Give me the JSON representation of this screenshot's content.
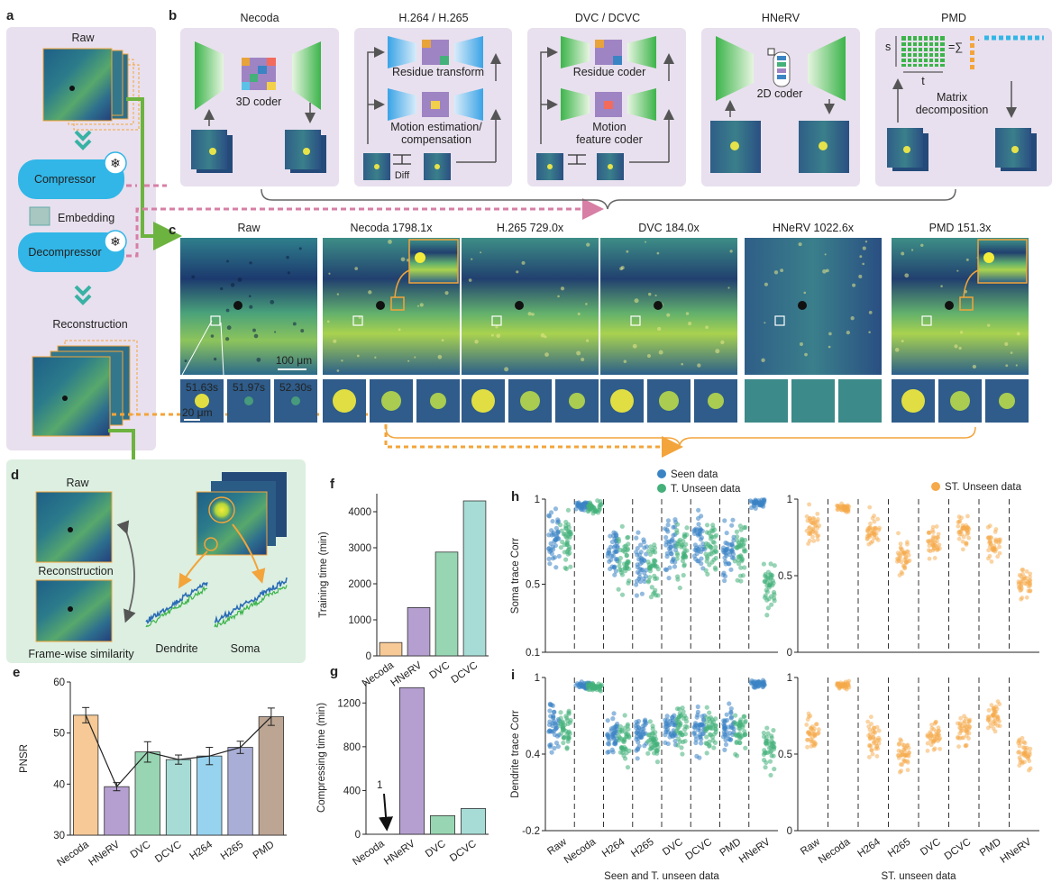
{
  "panels": {
    "a": {
      "letter": "a",
      "raw": "Raw",
      "compressor": "Compressor",
      "embedding": "Embedding",
      "decompressor": "Decompressor",
      "reconstruction": "Reconstruction"
    },
    "b": {
      "letter": "b",
      "methods": [
        {
          "title": "Necoda",
          "label": "3D coder"
        },
        {
          "title": "H.264 / H.265",
          "label1": "Residue transform",
          "label2": "Motion estimation/",
          "label3": "compensation",
          "label4": "Diff"
        },
        {
          "title": "DVC / DCVC",
          "label1": "Residue coder",
          "label2": "Motion",
          "label3": "feature coder"
        },
        {
          "title": "HNeRV",
          "label": "2D coder"
        },
        {
          "title": "PMD",
          "label1": "Matrix",
          "label2": "decomposition",
          "s": "s",
          "t": "t",
          "eq": "=∑"
        }
      ]
    },
    "c": {
      "letter": "c",
      "columns": [
        "Raw",
        "Necoda 1798.1x",
        "H.265 729.0x",
        "DVC 184.0x",
        "HNeRV 1022.6x",
        "PMD 151.3x"
      ],
      "timestamps": [
        "51.63s",
        "51.97s",
        "52.30s"
      ],
      "scalebar_main": "100 μm",
      "scalebar_crop": "20 μm"
    },
    "d": {
      "letter": "d",
      "raw": "Raw",
      "reconstruction": "Reconstruction",
      "similarity": "Frame-wise similarity",
      "dendrite": "Dendrite",
      "soma": "Soma"
    }
  },
  "chart_data": [
    {
      "panel": "e",
      "type": "bar",
      "ylabel": "PNSR",
      "categories": [
        "Necoda",
        "HNeRV",
        "DVC",
        "DCVC",
        "H264",
        "H265",
        "PMD"
      ],
      "values": [
        53.5,
        39.5,
        46.3,
        44.8,
        45.5,
        47.2,
        53.2
      ],
      "errors": [
        1.5,
        0.8,
        2.0,
        0.9,
        1.7,
        1.2,
        1.7
      ],
      "ylim": [
        30,
        60
      ],
      "yticks": [
        30,
        40,
        50,
        60
      ],
      "colors": [
        "#f6c996",
        "#b59fd0",
        "#98d6b3",
        "#a7dcd6",
        "#97d3ef",
        "#a9aed6",
        "#bca593"
      ]
    },
    {
      "panel": "f",
      "type": "bar",
      "ylabel": "Training time (min)",
      "categories": [
        "Necoda",
        "HNeRV",
        "DVC",
        "DCVC"
      ],
      "values": [
        370,
        1340,
        2880,
        4300
      ],
      "ylim": [
        0,
        4500
      ],
      "yticks": [
        0,
        1000,
        2000,
        3000,
        4000
      ],
      "colors": [
        "#f6c996",
        "#b59fd0",
        "#98d6b3",
        "#a7dcd6"
      ]
    },
    {
      "panel": "g",
      "type": "bar",
      "ylabel": "Compressing time (min)",
      "categories": [
        "Necoda",
        "HNeRV",
        "DVC",
        "DCVC"
      ],
      "values": [
        1,
        1340,
        170,
        235
      ],
      "ylim": [
        0,
        1400
      ],
      "yticks": [
        0,
        400,
        800,
        1200
      ],
      "annotation": "1",
      "colors": [
        "#f6c996",
        "#b59fd0",
        "#98d6b3",
        "#a7dcd6"
      ]
    },
    {
      "panel": "h",
      "type": "scatter",
      "ylabel": "Soma trace Corr",
      "yticks": [
        0.1,
        0.5,
        1
      ],
      "categories": [
        "Raw",
        "Necoda",
        "H264",
        "H265",
        "DVC",
        "DCVC",
        "PMD",
        "HNeRV"
      ],
      "series": [
        {
          "name": "Seen data",
          "color": "#3b84c4",
          "medians": [
            0.78,
            0.96,
            0.68,
            0.62,
            0.72,
            0.75,
            0.7,
            0.98
          ]
        },
        {
          "name": "T. Unseen data",
          "color": "#44b07a",
          "medians": [
            0.76,
            0.95,
            0.64,
            0.6,
            0.7,
            0.73,
            0.68,
            0.5
          ]
        }
      ],
      "right_series": {
        "name": "ST. Unseen data",
        "color": "#f5a94a",
        "medians": [
          0.82,
          0.94,
          0.78,
          0.62,
          0.72,
          0.8,
          0.68,
          0.45
        ]
      }
    },
    {
      "panel": "i",
      "type": "scatter",
      "ylabel": "Dendrite trace Corr",
      "yticks": [
        -0.2,
        0.4,
        1
      ],
      "left_yticks_right": [
        0,
        0.5,
        1
      ],
      "xlabel_left": "Seen and T. unseen data",
      "xlabel_right": "ST. unseen data",
      "categories": [
        "Raw",
        "Necoda",
        "H264",
        "H265",
        "DVC",
        "DCVC",
        "PMD",
        "HNeRV"
      ],
      "series": [
        {
          "name": "Seen data",
          "color": "#3b84c4",
          "medians": [
            0.62,
            0.94,
            0.55,
            0.55,
            0.6,
            0.6,
            0.62,
            0.95
          ]
        },
        {
          "name": "T. Unseen data",
          "color": "#44b07a",
          "medians": [
            0.6,
            0.93,
            0.52,
            0.52,
            0.58,
            0.58,
            0.6,
            0.45
          ]
        }
      ],
      "right_series": {
        "name": "ST. Unseen data",
        "color": "#f5a94a",
        "medians": [
          0.62,
          0.95,
          0.6,
          0.5,
          0.62,
          0.65,
          0.75,
          0.5
        ]
      }
    }
  ]
}
